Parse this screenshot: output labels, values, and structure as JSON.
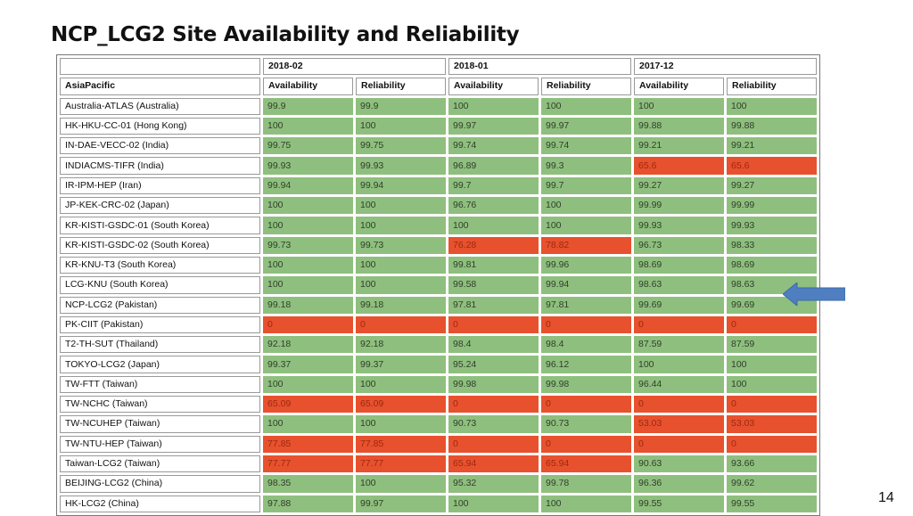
{
  "title": "NCP_LCG2 Site Availability and Reliability",
  "page_number": "14",
  "colors": {
    "good": "#8fbf7e",
    "bad": "#e8512d",
    "arrow": "#4f7fc0"
  },
  "table": {
    "region": "AsiaPacific",
    "periods": [
      "2018-02",
      "2018-01",
      "2017-12"
    ],
    "metrics": [
      "Availability",
      "Reliability"
    ],
    "rows": [
      {
        "site": "Australia-ATLAS (Australia)",
        "values": [
          "99.9",
          "99.9",
          "100",
          "100",
          "100",
          "100"
        ],
        "status": [
          "g",
          "g",
          "g",
          "g",
          "g",
          "g"
        ]
      },
      {
        "site": "HK-HKU-CC-01 (Hong Kong)",
        "values": [
          "100",
          "100",
          "99.97",
          "99.97",
          "99.88",
          "99.88"
        ],
        "status": [
          "g",
          "g",
          "g",
          "g",
          "g",
          "g"
        ]
      },
      {
        "site": "IN-DAE-VECC-02 (India)",
        "values": [
          "99.75",
          "99.75",
          "99.74",
          "99.74",
          "99.21",
          "99.21"
        ],
        "status": [
          "g",
          "g",
          "g",
          "g",
          "g",
          "g"
        ]
      },
      {
        "site": "INDIACMS-TIFR (India)",
        "values": [
          "99.93",
          "99.93",
          "96.89",
          "99.3",
          "65.6",
          "65.6"
        ],
        "status": [
          "g",
          "g",
          "g",
          "g",
          "r",
          "r"
        ]
      },
      {
        "site": "IR-IPM-HEP (Iran)",
        "values": [
          "99.94",
          "99.94",
          "99.7",
          "99.7",
          "99.27",
          "99.27"
        ],
        "status": [
          "g",
          "g",
          "g",
          "g",
          "g",
          "g"
        ]
      },
      {
        "site": "JP-KEK-CRC-02 (Japan)",
        "values": [
          "100",
          "100",
          "96.76",
          "100",
          "99.99",
          "99.99"
        ],
        "status": [
          "g",
          "g",
          "g",
          "g",
          "g",
          "g"
        ]
      },
      {
        "site": "KR-KISTI-GSDC-01 (South Korea)",
        "values": [
          "100",
          "100",
          "100",
          "100",
          "99.93",
          "99.93"
        ],
        "status": [
          "g",
          "g",
          "g",
          "g",
          "g",
          "g"
        ]
      },
      {
        "site": "KR-KISTI-GSDC-02 (South Korea)",
        "values": [
          "99.73",
          "99.73",
          "76.28",
          "78.82",
          "96.73",
          "98.33"
        ],
        "status": [
          "g",
          "g",
          "r",
          "r",
          "g",
          "g"
        ]
      },
      {
        "site": "KR-KNU-T3 (South Korea)",
        "values": [
          "100",
          "100",
          "99.81",
          "99.96",
          "98.69",
          "98.69"
        ],
        "status": [
          "g",
          "g",
          "g",
          "g",
          "g",
          "g"
        ]
      },
      {
        "site": "LCG-KNU (South Korea)",
        "values": [
          "100",
          "100",
          "99.58",
          "99.94",
          "98.63",
          "98.63"
        ],
        "status": [
          "g",
          "g",
          "g",
          "g",
          "g",
          "g"
        ]
      },
      {
        "site": "NCP-LCG2 (Pakistan)",
        "values": [
          "99.18",
          "99.18",
          "97.81",
          "97.81",
          "99.69",
          "99.69"
        ],
        "status": [
          "g",
          "g",
          "g",
          "g",
          "g",
          "g"
        ]
      },
      {
        "site": "PK-CIIT (Pakistan)",
        "values": [
          "0",
          "0",
          "0",
          "0",
          "0",
          "0"
        ],
        "status": [
          "r",
          "r",
          "r",
          "r",
          "r",
          "r"
        ]
      },
      {
        "site": "T2-TH-SUT (Thailand)",
        "values": [
          "92.18",
          "92.18",
          "98.4",
          "98.4",
          "87.59",
          "87.59"
        ],
        "status": [
          "g",
          "g",
          "g",
          "g",
          "g",
          "g"
        ]
      },
      {
        "site": "TOKYO-LCG2 (Japan)",
        "values": [
          "99.37",
          "99.37",
          "95.24",
          "96.12",
          "100",
          "100"
        ],
        "status": [
          "g",
          "g",
          "g",
          "g",
          "g",
          "g"
        ]
      },
      {
        "site": "TW-FTT (Taiwan)",
        "values": [
          "100",
          "100",
          "99.98",
          "99.98",
          "96.44",
          "100"
        ],
        "status": [
          "g",
          "g",
          "g",
          "g",
          "g",
          "g"
        ]
      },
      {
        "site": "TW-NCHC (Taiwan)",
        "values": [
          "65.09",
          "65.09",
          "0",
          "0",
          "0",
          "0"
        ],
        "status": [
          "r",
          "r",
          "r",
          "r",
          "r",
          "r"
        ]
      },
      {
        "site": "TW-NCUHEP (Taiwan)",
        "values": [
          "100",
          "100",
          "90.73",
          "90.73",
          "53.03",
          "53.03"
        ],
        "status": [
          "g",
          "g",
          "g",
          "g",
          "r",
          "r"
        ]
      },
      {
        "site": "TW-NTU-HEP (Taiwan)",
        "values": [
          "77.85",
          "77.85",
          "0",
          "0",
          "0",
          "0"
        ],
        "status": [
          "r",
          "r",
          "r",
          "r",
          "r",
          "r"
        ]
      },
      {
        "site": "Taiwan-LCG2 (Taiwan)",
        "values": [
          "77.77",
          "77.77",
          "65.94",
          "65.94",
          "90.63",
          "93.66"
        ],
        "status": [
          "r",
          "r",
          "r",
          "r",
          "g",
          "g"
        ]
      },
      {
        "site": "BEIJING-LCG2 (China)",
        "values": [
          "98.35",
          "100",
          "95.32",
          "99.78",
          "96.36",
          "99.62"
        ],
        "status": [
          "g",
          "g",
          "g",
          "g",
          "g",
          "g"
        ]
      },
      {
        "site": "HK-LCG2 (China)",
        "values": [
          "97.88",
          "99.97",
          "100",
          "100",
          "99.55",
          "99.55"
        ],
        "status": [
          "g",
          "g",
          "g",
          "g",
          "g",
          "g"
        ]
      }
    ]
  },
  "highlight": {
    "site": "NCP-LCG2 (Pakistan)",
    "icon": "left-arrow-icon"
  }
}
